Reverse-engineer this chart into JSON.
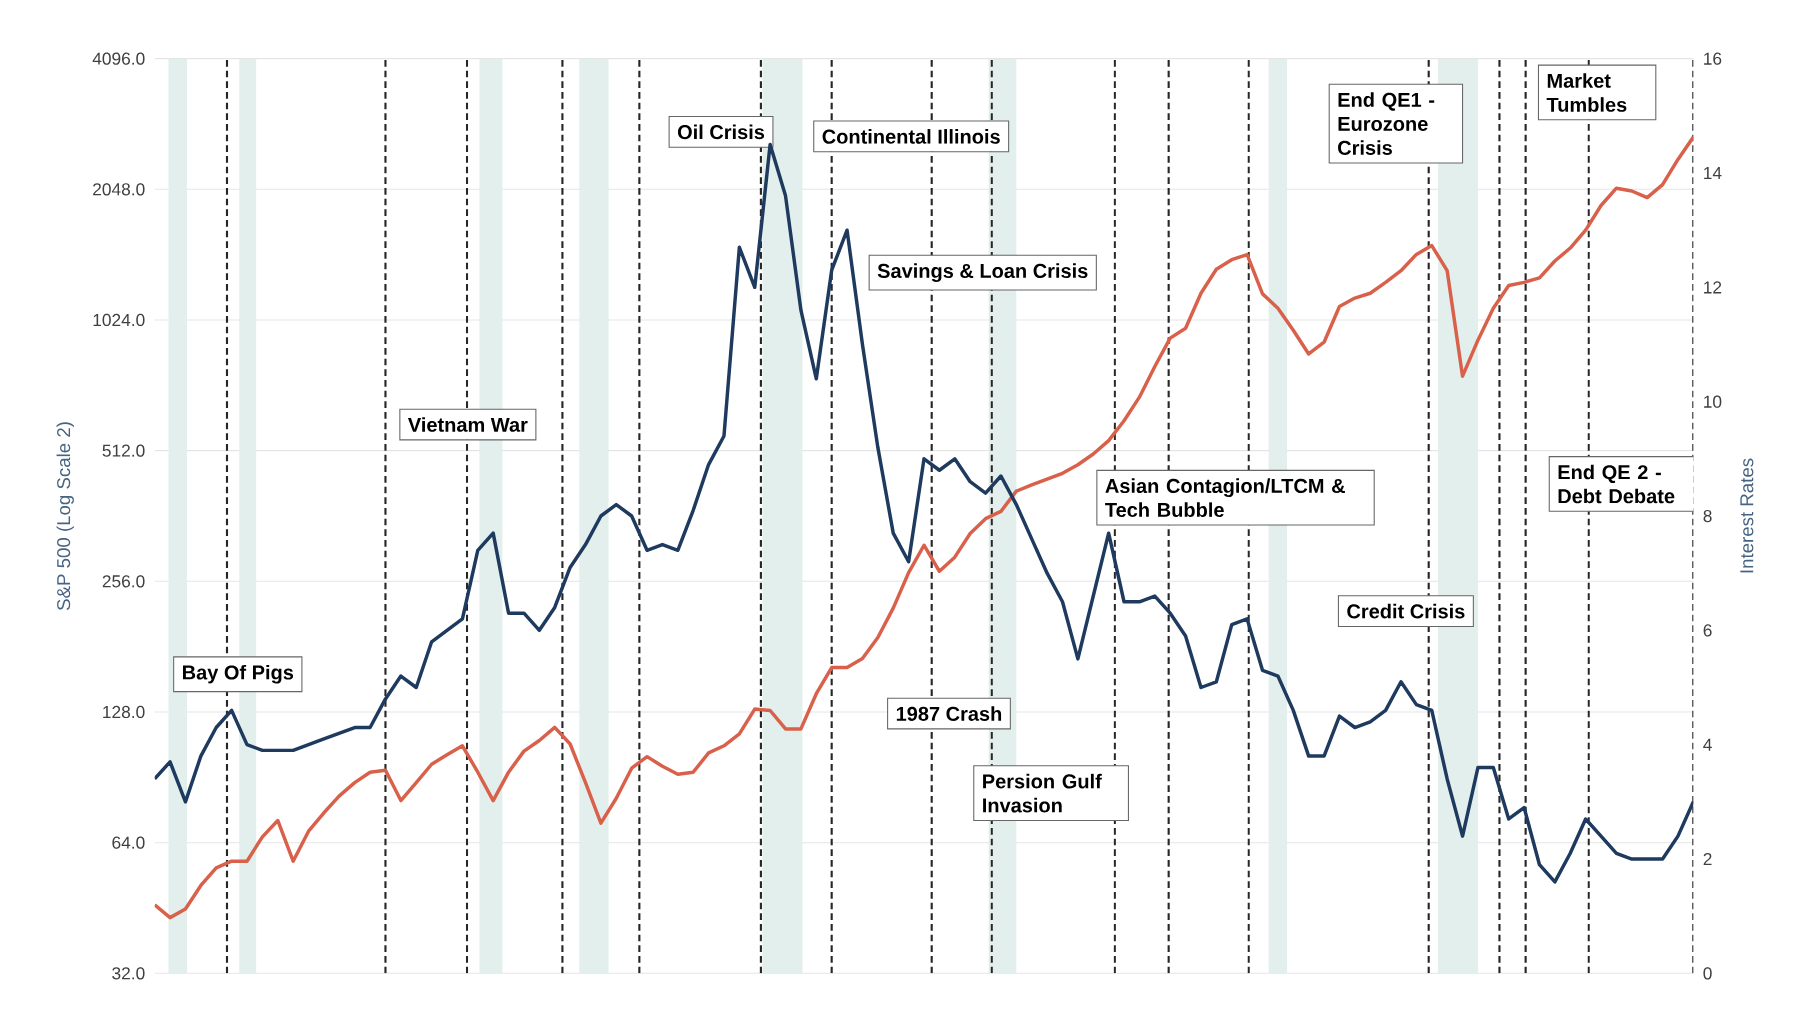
{
  "chart_data": {
    "type": "line",
    "ylabel": "S&P 500 (Log Scale 2)",
    "y2label": "Interest Rates",
    "categories": [
      null,
      null,
      null,
      null,
      null,
      null,
      null,
      null,
      null,
      null,
      null,
      null,
      null,
      null,
      null,
      null,
      null,
      null,
      null,
      null,
      null,
      null,
      null,
      null,
      null,
      null,
      null,
      null,
      null,
      null,
      null,
      null,
      null,
      null,
      null,
      null,
      null,
      null,
      null,
      null,
      null,
      null,
      null,
      null,
      null,
      null,
      null,
      null,
      null,
      null,
      null,
      null,
      null,
      null,
      null,
      null,
      null,
      null,
      null,
      null,
      null,
      null,
      null,
      null,
      null,
      null,
      null,
      null,
      null,
      null,
      null,
      null,
      null,
      null,
      null,
      null,
      null,
      null,
      null,
      null,
      null,
      null,
      null,
      null,
      null,
      null,
      null,
      null,
      null,
      null,
      null,
      null,
      null,
      null,
      null,
      null,
      null,
      null,
      null,
      null,
      null
    ],
    "ylim": [
      32,
      4096
    ],
    "y2lim": [
      0,
      16
    ],
    "log": "y",
    "yticks": [
      {
        "value": 32,
        "label": "32.0"
      },
      {
        "value": 64,
        "label": "64.0"
      },
      {
        "value": 128,
        "label": "128.0"
      },
      {
        "value": 256,
        "label": "256.0"
      },
      {
        "value": 512,
        "label": "512.0"
      },
      {
        "value": 1024,
        "label": "1024.0"
      },
      {
        "value": 2048,
        "label": "2048.0"
      },
      {
        "value": 4096,
        "label": "4096.0"
      }
    ],
    "y2ticks": [
      0,
      2,
      4,
      6,
      8,
      10,
      12,
      14,
      16
    ],
    "grid": "y",
    "line_style": "solid",
    "series": [
      {
        "color": "#d9604a",
        "values": [
          46,
          43,
          45,
          51,
          56,
          58,
          58,
          66,
          72,
          58,
          68,
          75,
          82,
          88,
          93,
          94,
          80,
          88,
          97,
          102,
          107,
          93,
          80,
          93,
          104,
          110,
          118,
          108,
          88,
          71,
          81,
          95,
          101,
          96,
          92,
          93,
          103,
          107,
          114,
          130,
          129,
          117,
          117,
          141,
          162,
          162,
          170,
          190,
          222,
          268,
          310,
          270,
          291,
          330,
          357,
          371,
          413,
          427,
          440,
          454,
          475,
          503,
          540,
          600,
          680,
          800,
          930,
          980,
          1180,
          1340,
          1410,
          1448,
          1176,
          1090,
          970,
          855,
          910,
          1100,
          1150,
          1180,
          1250,
          1330,
          1450,
          1520,
          1330,
          760,
          920,
          1090,
          1230,
          1250,
          1280,
          1400,
          1500,
          1650,
          1880,
          2060,
          2030,
          1960,
          2100,
          2400,
          2702
        ]
      },
      {
        "color": "#1f3a5f",
        "axis": "y2",
        "values": [
          3.4,
          3.7,
          3.0,
          3.8,
          4.3,
          4.6,
          4.0,
          3.9,
          3.9,
          3.9,
          4.0,
          4.1,
          4.2,
          4.3,
          4.3,
          4.8,
          5.2,
          5.0,
          5.8,
          6.0,
          6.2,
          7.4,
          7.7,
          6.3,
          6.3,
          6.0,
          6.4,
          7.1,
          7.5,
          8.0,
          8.2,
          8.0,
          7.4,
          7.5,
          7.4,
          8.1,
          8.9,
          9.4,
          12.7,
          12.0,
          14.5,
          13.6,
          11.6,
          10.4,
          12.3,
          13.0,
          11.0,
          9.2,
          7.7,
          7.2,
          9.0,
          8.8,
          9.0,
          8.6,
          8.4,
          8.7,
          8.2,
          7.6,
          7.0,
          6.5,
          5.5,
          6.6,
          7.7,
          6.5,
          6.5,
          6.6,
          6.3,
          5.9,
          5.0,
          5.1,
          6.1,
          6.2,
          5.3,
          5.2,
          4.6,
          3.8,
          3.8,
          4.5,
          4.3,
          4.4,
          4.6,
          5.1,
          4.7,
          4.6,
          3.4,
          2.4,
          3.6,
          3.6,
          2.7,
          2.9,
          1.9,
          1.6,
          2.1,
          2.7,
          2.4,
          2.1,
          2.0,
          2.0,
          2.0,
          2.4,
          3.0
        ]
      }
    ],
    "annotations": [
      "Bay Of Pigs",
      "Vietnam War",
      "Oil Crisis",
      "Continental Illinois",
      "Savings & Loan Crisis",
      "1987 Crash",
      "Persion Gulf Invasion",
      "Asian Contagion/LTCM & Tech Bubble",
      "Credit Crisis",
      "End QE1 - Eurozone Crisis",
      "Market Tumbles",
      "End QE 2 - Debt Debate"
    ]
  }
}
